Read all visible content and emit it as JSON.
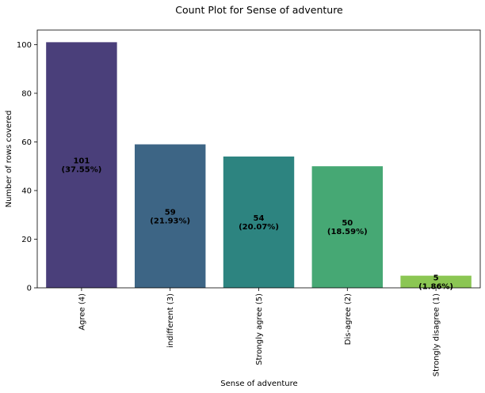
{
  "chart_data": {
    "type": "bar",
    "title": "Count Plot for Sense of adventure",
    "xlabel": "Sense of adventure",
    "ylabel": "Number of rows covered",
    "categories": [
      "Agree (4)",
      "indifferent (3)",
      "Strongly agree (5)",
      "Dis-agree (2)",
      "Strongly disagree (1)"
    ],
    "values": [
      101,
      59,
      54,
      50,
      5
    ],
    "data_labels": [
      [
        "101",
        "(37.55%)"
      ],
      [
        "59",
        "(21.93%)"
      ],
      [
        "54",
        "(20.07%)"
      ],
      [
        "50",
        "(18.59%)"
      ],
      [
        "5",
        "(1.86%)"
      ]
    ],
    "colors": [
      "#4a3f7a",
      "#3d6585",
      "#2d8480",
      "#46a874",
      "#8bc653"
    ],
    "ylim": [
      0,
      106
    ],
    "yticks": [
      0,
      20,
      40,
      60,
      80,
      100
    ],
    "grid": false,
    "legend": "none"
  }
}
